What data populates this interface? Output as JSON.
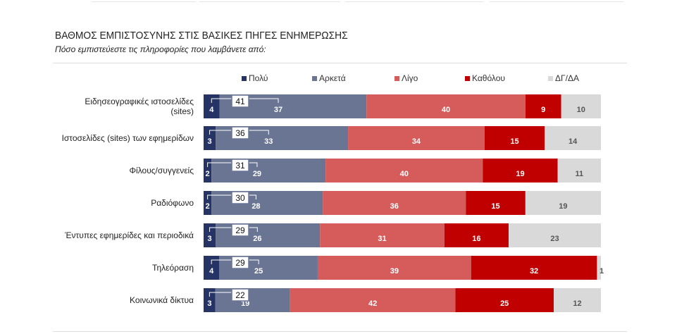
{
  "header": {
    "title": "ΒΑΘΜΟΣ ΕΜΠΙΣΤΟΣΥΝΗΣ ΣΤΙΣ ΒΑΣΙΚΕΣ ΠΗΓΕΣ ΕΝΗΜΕΡΩΣΗΣ",
    "subtitle": "Πόσο εμπιστεύεστε τις πληροφορίες που λαμβάνετε από:"
  },
  "chart_data": {
    "type": "bar",
    "orientation": "horizontal",
    "stacked": true,
    "title": "ΒΑΘΜΟΣ ΕΜΠΙΣΤΟΣΥΝΗΣ ΣΤΙΣ ΒΑΣΙΚΕΣ ΠΗΓΕΣ ΕΝΗΜΕΡΩΣΗΣ",
    "legend_position": "top",
    "categories": [
      "Ειδησεογραφικές ιστοσελίδες (sites)",
      "Ιστοσελίδες (sites) των εφημερίδων",
      "Φίλους/συγγενείς",
      "Ραδιόφωνο",
      "Έντυπες εφημερίδες και περιοδικά",
      "Τηλεόραση",
      "Κοινωνικά δίκτυα"
    ],
    "series": [
      {
        "name": "Πολύ",
        "color": "#253465",
        "values": [
          4,
          3,
          2,
          2,
          3,
          4,
          3
        ]
      },
      {
        "name": "Αρκετά",
        "color": "#6a7594",
        "values": [
          37,
          33,
          29,
          28,
          26,
          25,
          19
        ]
      },
      {
        "name": "Λίγο",
        "color": "#d65c5c",
        "values": [
          40,
          34,
          40,
          36,
          31,
          39,
          42
        ]
      },
      {
        "name": "Καθόλου",
        "color": "#c00000",
        "values": [
          9,
          15,
          19,
          15,
          16,
          32,
          25
        ]
      },
      {
        "name": "ΔΓ/ΔΑ",
        "color": "#d9d9d9",
        "values": [
          10,
          14,
          11,
          19,
          23,
          1,
          12
        ]
      }
    ],
    "totals_polu_arketa": [
      41,
      36,
      31,
      30,
      29,
      29,
      22
    ]
  }
}
